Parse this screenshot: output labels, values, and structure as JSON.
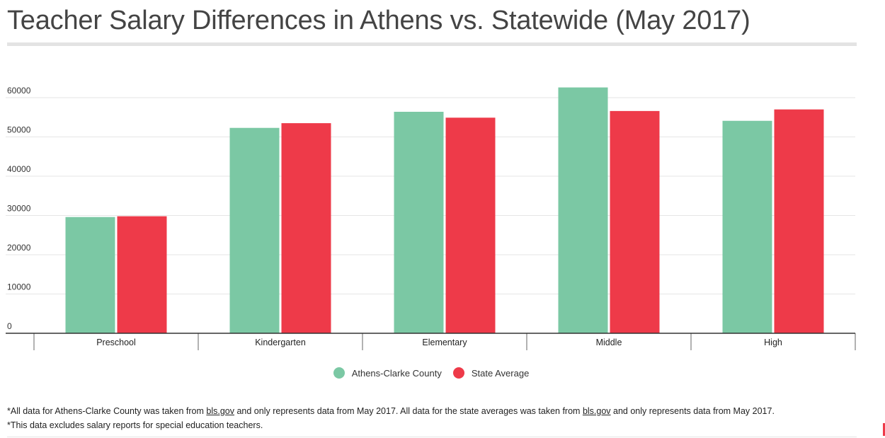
{
  "title": "Teacher Salary Differences in Athens vs. Statewide (May 2017)",
  "colors": {
    "county": "#7bc8a4",
    "state": "#ee3a49"
  },
  "chart_data": {
    "type": "bar",
    "title": "Teacher Salary Differences in Athens vs. Statewide (May 2017)",
    "categories": [
      "Preschool",
      "Kindergarten",
      "Elementary",
      "Middle",
      "High"
    ],
    "series": [
      {
        "name": "Athens-Clarke County",
        "values": [
          29600,
          52300,
          56400,
          62600,
          54100
        ]
      },
      {
        "name": "State Average",
        "values": [
          29800,
          53500,
          54900,
          56600,
          57000
        ]
      }
    ],
    "ylim": [
      0,
      60000
    ],
    "yticks": [
      0,
      10000,
      20000,
      30000,
      40000,
      50000,
      60000
    ],
    "grid": true,
    "legend_position": "bottom"
  },
  "legend": {
    "county_label": "Athens-Clarke County",
    "state_label": "State Average"
  },
  "notes": {
    "line1_part1": "*All data for Athens-Clarke County was taken from ",
    "link1": "bls.gov",
    "line1_part2": " and only represents data from May 2017. All data for the state averages was taken from ",
    "link2": "bls.gov",
    "line1_part3": " and only represents data from May 2017.",
    "line2": "*This data excludes salary reports for special education teachers."
  }
}
